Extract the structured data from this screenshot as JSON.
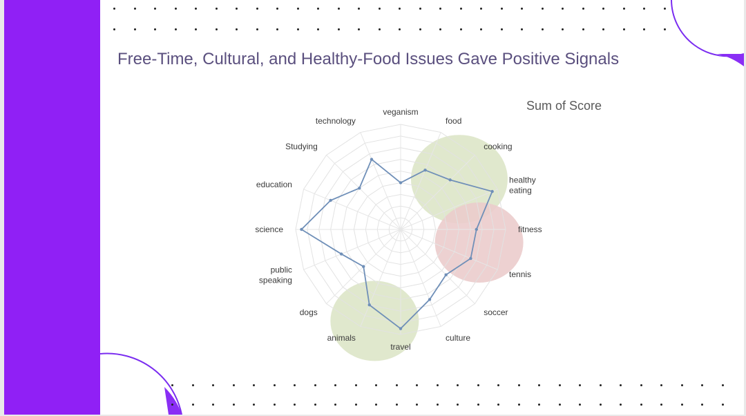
{
  "slide": {
    "title": "Free-Time, Cultural, and Healthy-Food Issues Gave Positive Signals"
  },
  "colors": {
    "accent": "#9020f5",
    "series_line": "#6f8fb8",
    "highlight_green": "#dde6c8",
    "highlight_red": "#ebcccc"
  },
  "chart_data": {
    "type": "radar",
    "title": "Sum of Score",
    "categories": [
      "veganism",
      "food",
      "cooking",
      "healthy eating",
      "fitness",
      "tennis",
      "soccer",
      "culture",
      "travel",
      "animals",
      "dogs",
      "public speaking",
      "science",
      "education",
      "Studying",
      "technology"
    ],
    "series": [
      {
        "values": [
          4,
          5.5,
          6,
          8.5,
          6.5,
          6.5,
          5.5,
          6.5,
          8.5,
          7,
          4.5,
          5.5,
          8.5,
          6.5,
          5,
          6.5
        ]
      }
    ],
    "rlim": [
      0,
      9
    ],
    "grid": true,
    "highlights": [
      {
        "color": "green",
        "categories": [
          "food",
          "cooking",
          "healthy eating"
        ]
      },
      {
        "color": "red",
        "categories": [
          "fitness",
          "tennis"
        ]
      },
      {
        "color": "green",
        "categories": [
          "travel",
          "animals"
        ]
      }
    ]
  }
}
